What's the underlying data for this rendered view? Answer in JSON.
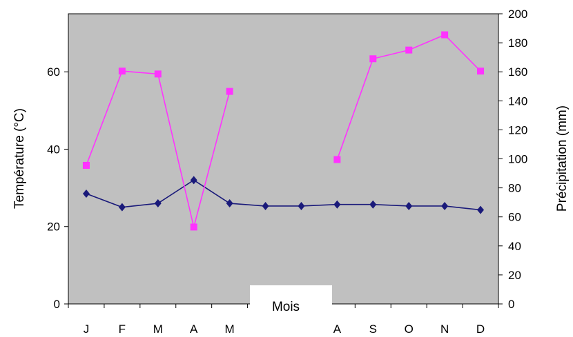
{
  "chart_data": {
    "type": "line",
    "categories": [
      "J",
      "F",
      "M",
      "A",
      "M",
      "",
      "",
      "A",
      "S",
      "O",
      "N",
      "D"
    ],
    "xlabel": "Mois",
    "y_left": {
      "label": "Température (°C)",
      "ylim": [
        0,
        75
      ],
      "ticks": [
        0,
        20,
        40,
        60
      ]
    },
    "y_right": {
      "label": "Précipitation (mm)",
      "ylim": [
        0,
        200
      ],
      "ticks": [
        0,
        20,
        40,
        60,
        80,
        100,
        120,
        140,
        160,
        180,
        200
      ]
    },
    "series": [
      {
        "axis": "left",
        "marker": "diamond",
        "color": "#1a1a7a",
        "values": [
          28.5,
          25,
          26,
          32,
          26,
          25.3,
          25.3,
          25.7,
          25.7,
          25.3,
          25.3,
          24.3
        ]
      },
      {
        "axis": "right",
        "marker": "square",
        "color": "#ff33ff",
        "values": [
          95.5,
          160.5,
          158.5,
          53,
          146.5,
          null,
          null,
          99.5,
          169,
          175,
          185.5,
          160.5
        ]
      }
    ],
    "plot_background": "#c0c0c0",
    "grid": false,
    "legend": "none"
  }
}
